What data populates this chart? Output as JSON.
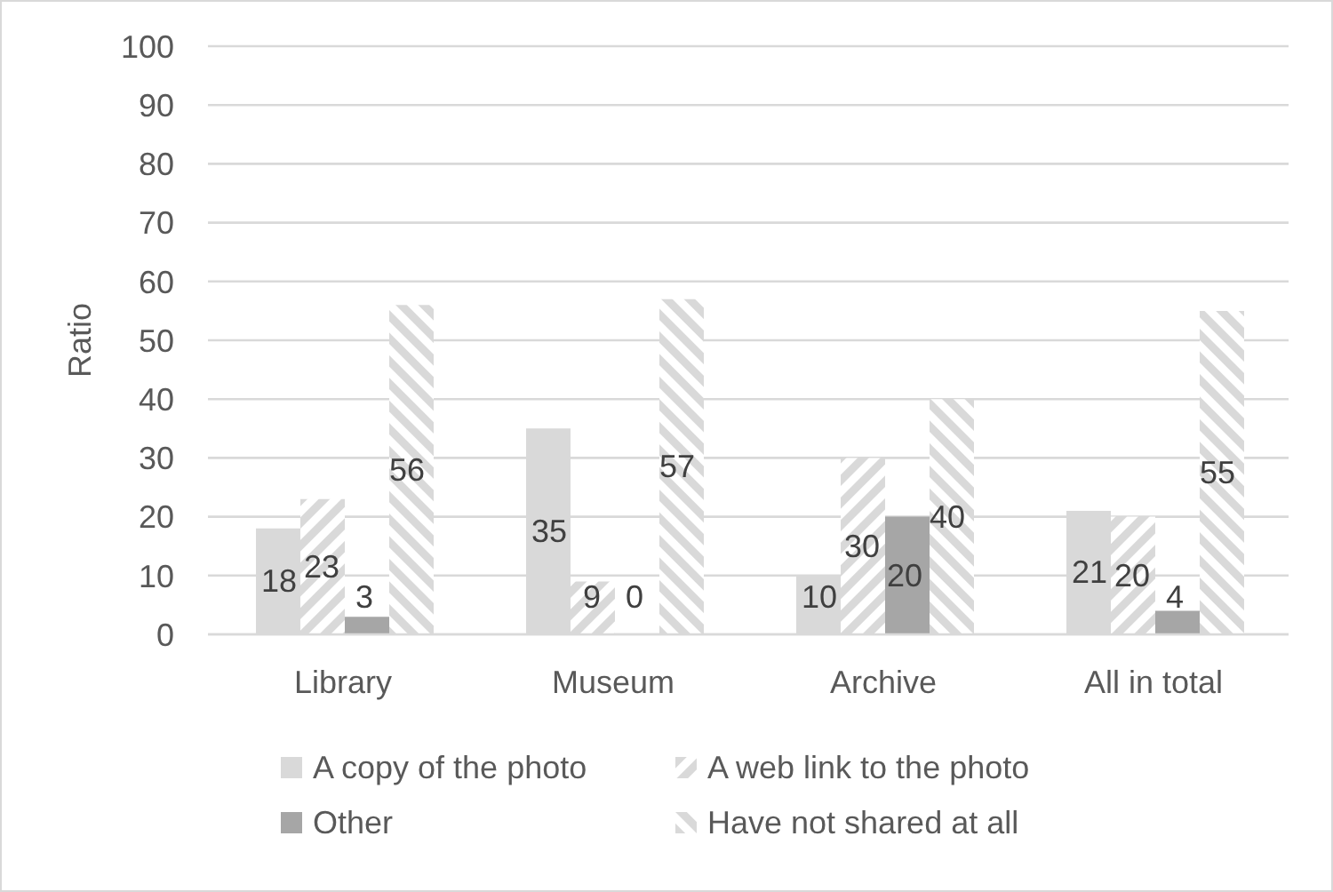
{
  "chart_data": {
    "type": "bar",
    "ylabel": "Ratio",
    "categories": [
      "Library",
      "Museum",
      "Archive",
      "All in total"
    ],
    "series": [
      {
        "name": "A copy of the photo",
        "color": "#d9d9d9",
        "values": [
          18,
          35,
          10,
          21
        ]
      },
      {
        "name": "A web link to the photo",
        "color": "#d9d9d9",
        "values": [
          23,
          9,
          30,
          20
        ]
      },
      {
        "name": "Other",
        "color": "#a6a6a6",
        "values": [
          3,
          0,
          20,
          4
        ]
      },
      {
        "name": "Have not shared at all",
        "color": "#d9d9d9",
        "values": [
          56,
          57,
          40,
          55
        ]
      }
    ],
    "ylim": [
      0,
      100
    ],
    "yticks": [
      0,
      10,
      20,
      30,
      40,
      50,
      60,
      70,
      80,
      90,
      100
    ],
    "grid": "y",
    "legend": "bottom",
    "data_labels": true
  }
}
